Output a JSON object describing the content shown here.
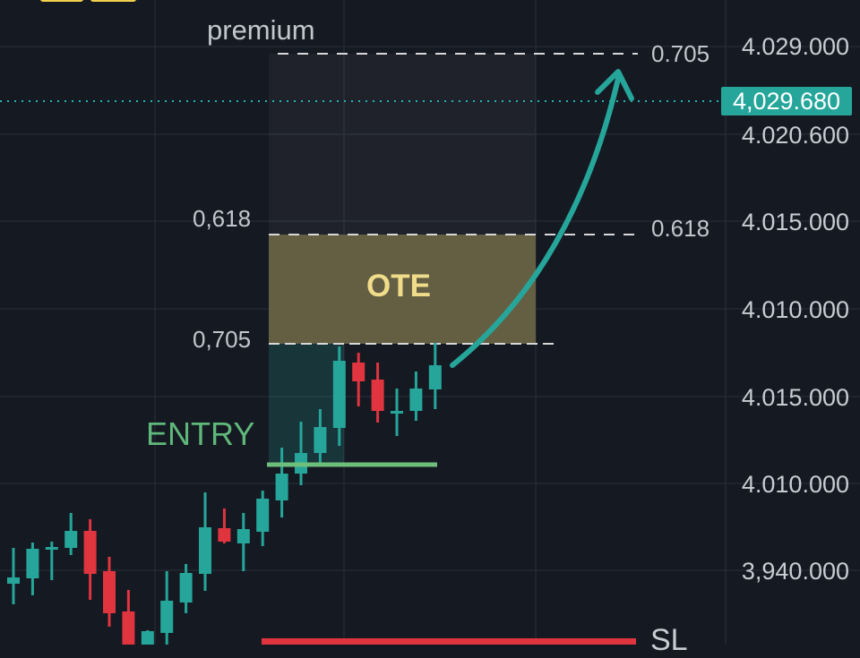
{
  "colors": {
    "background": "#151922",
    "up": "#26a69a",
    "down": "#e0353f",
    "ote": "#6b6547",
    "entry": "#6dbf7b",
    "sl": "#e0353f",
    "ote_text": "#f0dc8a",
    "last_price": "#26a69a",
    "top_buttons": "#f2d14a"
  },
  "labels": {
    "premium": "premium",
    "ote": "OTE",
    "entry": "ENTRY",
    "sl": "SL",
    "fib_left_618": "0,618",
    "fib_left_705": "0,705",
    "fib_right_705": "0.705",
    "fib_right_618": "0.618"
  },
  "price_axis": {
    "ticks": [
      "4.029.000",
      "4.020.600",
      "4.015.000",
      "4.010.000",
      "4.015.000",
      "4.010.000",
      "3,940.000"
    ],
    "last_price": "4,029.680"
  },
  "chart_data": {
    "type": "candlestick",
    "title": "",
    "grid": true,
    "candles": [
      {
        "o": 3956.8,
        "h": 3960.8,
        "l": 3954.5,
        "c": 3957.5
      },
      {
        "o": 3957.4,
        "h": 3961.4,
        "l": 3955.5,
        "c": 3960.7
      },
      {
        "o": 3960.7,
        "h": 3961.5,
        "l": 3957.2,
        "c": 3960.9
      },
      {
        "o": 3960.8,
        "h": 3964.7,
        "l": 3960.0,
        "c": 3962.7
      },
      {
        "o": 3962.7,
        "h": 3964.0,
        "l": 3955.0,
        "c": 3957.9
      },
      {
        "o": 3958.2,
        "h": 3959.8,
        "l": 3952.0,
        "c": 3953.5
      },
      {
        "o": 3953.7,
        "h": 3956.1,
        "l": 3948.5,
        "c": 3948.8
      },
      {
        "o": 3948.0,
        "h": 3951.6,
        "l": 3947.0,
        "c": 3951.5
      },
      {
        "o": 3951.3,
        "h": 3958.2,
        "l": 3949.5,
        "c": 3954.9
      },
      {
        "o": 3954.7,
        "h": 3959.0,
        "l": 3953.5,
        "c": 3958.0
      },
      {
        "o": 3957.9,
        "h": 3967.0,
        "l": 3956.0,
        "c": 3963.1
      },
      {
        "o": 3963.0,
        "h": 3965.2,
        "l": 3961.3,
        "c": 3961.5
      },
      {
        "o": 3961.3,
        "h": 3964.7,
        "l": 3958.2,
        "c": 3962.9
      },
      {
        "o": 3962.6,
        "h": 3967.2,
        "l": 3961.0,
        "c": 3966.3
      },
      {
        "o": 3966.1,
        "h": 3972.0,
        "l": 3964.2,
        "c": 3969.1
      },
      {
        "o": 3969.1,
        "h": 3974.9,
        "l": 3967.8,
        "c": 3971.4
      },
      {
        "o": 3971.4,
        "h": 3976.3,
        "l": 3970.3,
        "c": 3974.3
      },
      {
        "o": 3974.2,
        "h": 3983.3,
        "l": 3972.2,
        "c": 3981.7
      },
      {
        "o": 3981.5,
        "h": 3982.6,
        "l": 3976.6,
        "c": 3979.4
      },
      {
        "o": 3979.6,
        "h": 3981.5,
        "l": 3974.8,
        "c": 3976.1
      },
      {
        "o": 3975.9,
        "h": 3978.6,
        "l": 3973.3,
        "c": 3976.1
      },
      {
        "o": 3976.1,
        "h": 3980.5,
        "l": 3975.0,
        "c": 3978.6
      },
      {
        "o": 3978.5,
        "h": 3983.7,
        "l": 3976.3,
        "c": 3981.2
      }
    ]
  }
}
